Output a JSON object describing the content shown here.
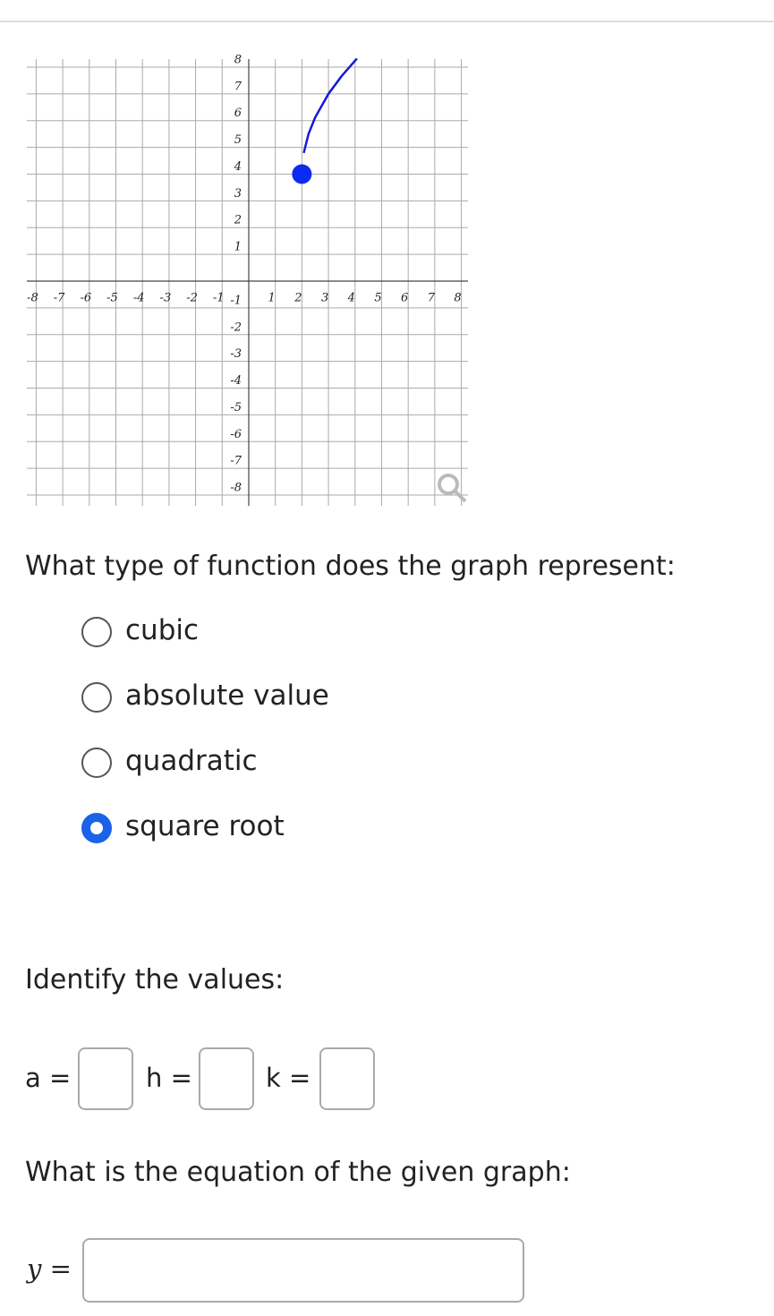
{
  "chart_data": {
    "type": "line",
    "x": [
      2.07,
      2.25,
      2.5,
      3,
      3.5,
      4.07
    ],
    "series": [
      {
        "color": "#1818d8",
        "values": [
          4.79,
          5.5,
          6.12,
          7,
          7.67,
          8.32
        ]
      }
    ],
    "endpoint": {
      "x": 2,
      "y": 4,
      "color": "#0b2cf0"
    },
    "xlim": [
      -8.35,
      8.25
    ],
    "ylim": [
      -8.4,
      8.3
    ],
    "xticks": [
      -8,
      -7,
      -6,
      -5,
      -4,
      -3,
      -2,
      -1,
      1,
      2,
      3,
      4,
      5,
      6,
      7,
      8
    ],
    "yticks": [
      -8,
      -7,
      -6,
      -5,
      -4,
      -3,
      -2,
      -1,
      1,
      2,
      3,
      4,
      5,
      6,
      7,
      8
    ],
    "grid": true
  },
  "question1": {
    "prompt": "What type of function does the graph represent:",
    "options": [
      {
        "label": "cubic",
        "selected": false
      },
      {
        "label": "absolute value",
        "selected": false
      },
      {
        "label": "quadratic",
        "selected": false
      },
      {
        "label": "square root",
        "selected": true
      }
    ]
  },
  "question2": {
    "prompt": "Identify the values:",
    "fields": [
      "a =",
      "h =",
      "k ="
    ]
  },
  "question3": {
    "prompt": "What is the equation of the given graph:",
    "field_label": "y ="
  }
}
